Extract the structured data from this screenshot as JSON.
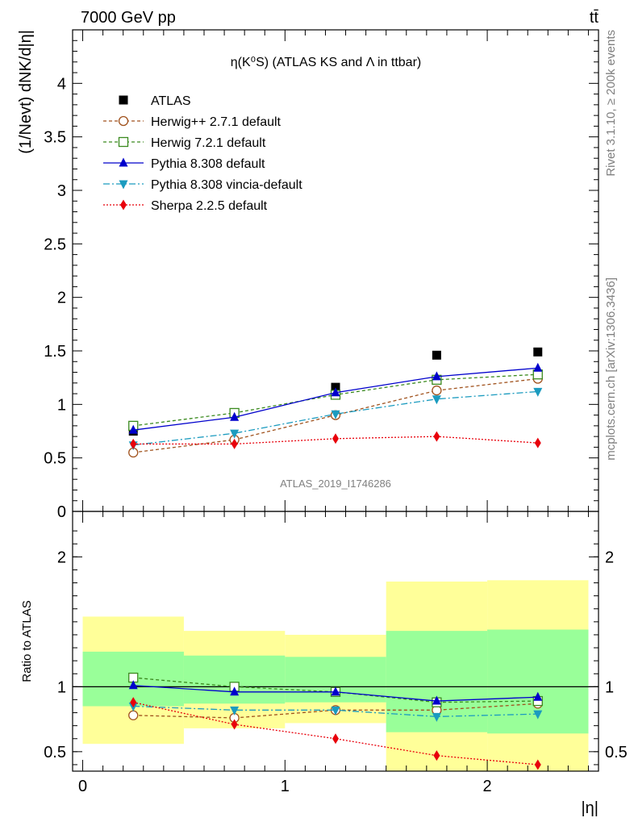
{
  "header": {
    "left": "7000 GeV pp",
    "right": "tt̄",
    "side_top": "Rivet 3.1.10, ≥ 200k events",
    "side_bottom": "mcplots.cern.ch [arXiv:1306.3436]",
    "watermark": "ATLAS_2019_I1746286"
  },
  "chart_data": [
    {
      "type": "line",
      "title": "η(K⁰S) (ATLAS KS and Λ in ttbar)",
      "ylabel": "(1/Nevt) dNK/d|η|",
      "xlim": [
        -0.05,
        2.55
      ],
      "ylim": [
        0,
        4.5
      ],
      "x": [
        0.25,
        0.75,
        1.25,
        1.75,
        2.25
      ],
      "yticks": [
        "0",
        "0.5",
        "1",
        "1.5",
        "2",
        "2.5",
        "3",
        "3.5",
        "4"
      ],
      "legend": {
        "placement": "top-left"
      },
      "series": [
        {
          "name": "ATLAS",
          "color": "#000000",
          "marker": "square",
          "values": [
            0.75,
            0.92,
            1.16,
            1.46,
            1.49
          ]
        },
        {
          "name": "Herwig++ 2.7.1 default",
          "color": "#a0521d",
          "marker": "circle-open",
          "dash": "4,3",
          "values": [
            0.55,
            0.67,
            0.9,
            1.13,
            1.24
          ]
        },
        {
          "name": "Herwig 7.2.1 default",
          "color": "#3a8a1e",
          "marker": "square-open",
          "dash": "4,3",
          "values": [
            0.8,
            0.92,
            1.09,
            1.23,
            1.28
          ]
        },
        {
          "name": "Pythia 8.308 default",
          "color": "#0000cc",
          "marker": "triangle-up",
          "values": [
            0.76,
            0.88,
            1.11,
            1.26,
            1.34
          ]
        },
        {
          "name": "Pythia 8.308 vincia-default",
          "color": "#1b9bbf",
          "marker": "triangle-down",
          "dash": "8,3,2,3",
          "values": [
            0.62,
            0.73,
            0.91,
            1.05,
            1.12
          ]
        },
        {
          "name": "Sherpa 2.2.5 default",
          "color": "#e8000b",
          "marker": "diamond",
          "dash": "2,2",
          "values": [
            0.63,
            0.63,
            0.68,
            0.7,
            0.64
          ]
        }
      ]
    },
    {
      "type": "line",
      "xlabel": "|η|",
      "ylabel": "Ratio to ATLAS",
      "xlim": [
        -0.05,
        2.55
      ],
      "ylim": [
        0.35,
        2.35
      ],
      "xticks": [
        "0",
        "1",
        "2"
      ],
      "yticks": [
        "0.5",
        "1",
        "2"
      ],
      "bands": {
        "bin_edges": [
          0,
          0.5,
          1.0,
          1.5,
          2.0,
          2.5
        ],
        "inner_green": [
          [
            0.85,
            1.27
          ],
          [
            0.87,
            1.24
          ],
          [
            0.88,
            1.23
          ],
          [
            0.65,
            1.43
          ],
          [
            0.64,
            1.44
          ]
        ],
        "outer_yellow": [
          [
            0.56,
            1.54
          ],
          [
            0.68,
            1.43
          ],
          [
            0.72,
            1.4
          ],
          [
            0.35,
            1.81
          ],
          [
            0.35,
            1.82
          ]
        ]
      },
      "series": [
        {
          "name": "Herwig++ 2.7.1 default",
          "values": [
            0.78,
            0.76,
            0.82,
            0.82,
            0.87
          ]
        },
        {
          "name": "Herwig 7.2.1 default",
          "values": [
            1.07,
            1.0,
            0.96,
            0.88,
            0.89
          ]
        },
        {
          "name": "Pythia 8.308 default",
          "values": [
            1.01,
            0.96,
            0.96,
            0.89,
            0.92
          ]
        },
        {
          "name": "Pythia 8.308 vincia-default",
          "values": [
            0.85,
            0.82,
            0.82,
            0.77,
            0.79
          ]
        },
        {
          "name": "Sherpa 2.2.5 default",
          "values": [
            0.88,
            0.71,
            0.6,
            0.47,
            0.4
          ]
        }
      ]
    }
  ]
}
